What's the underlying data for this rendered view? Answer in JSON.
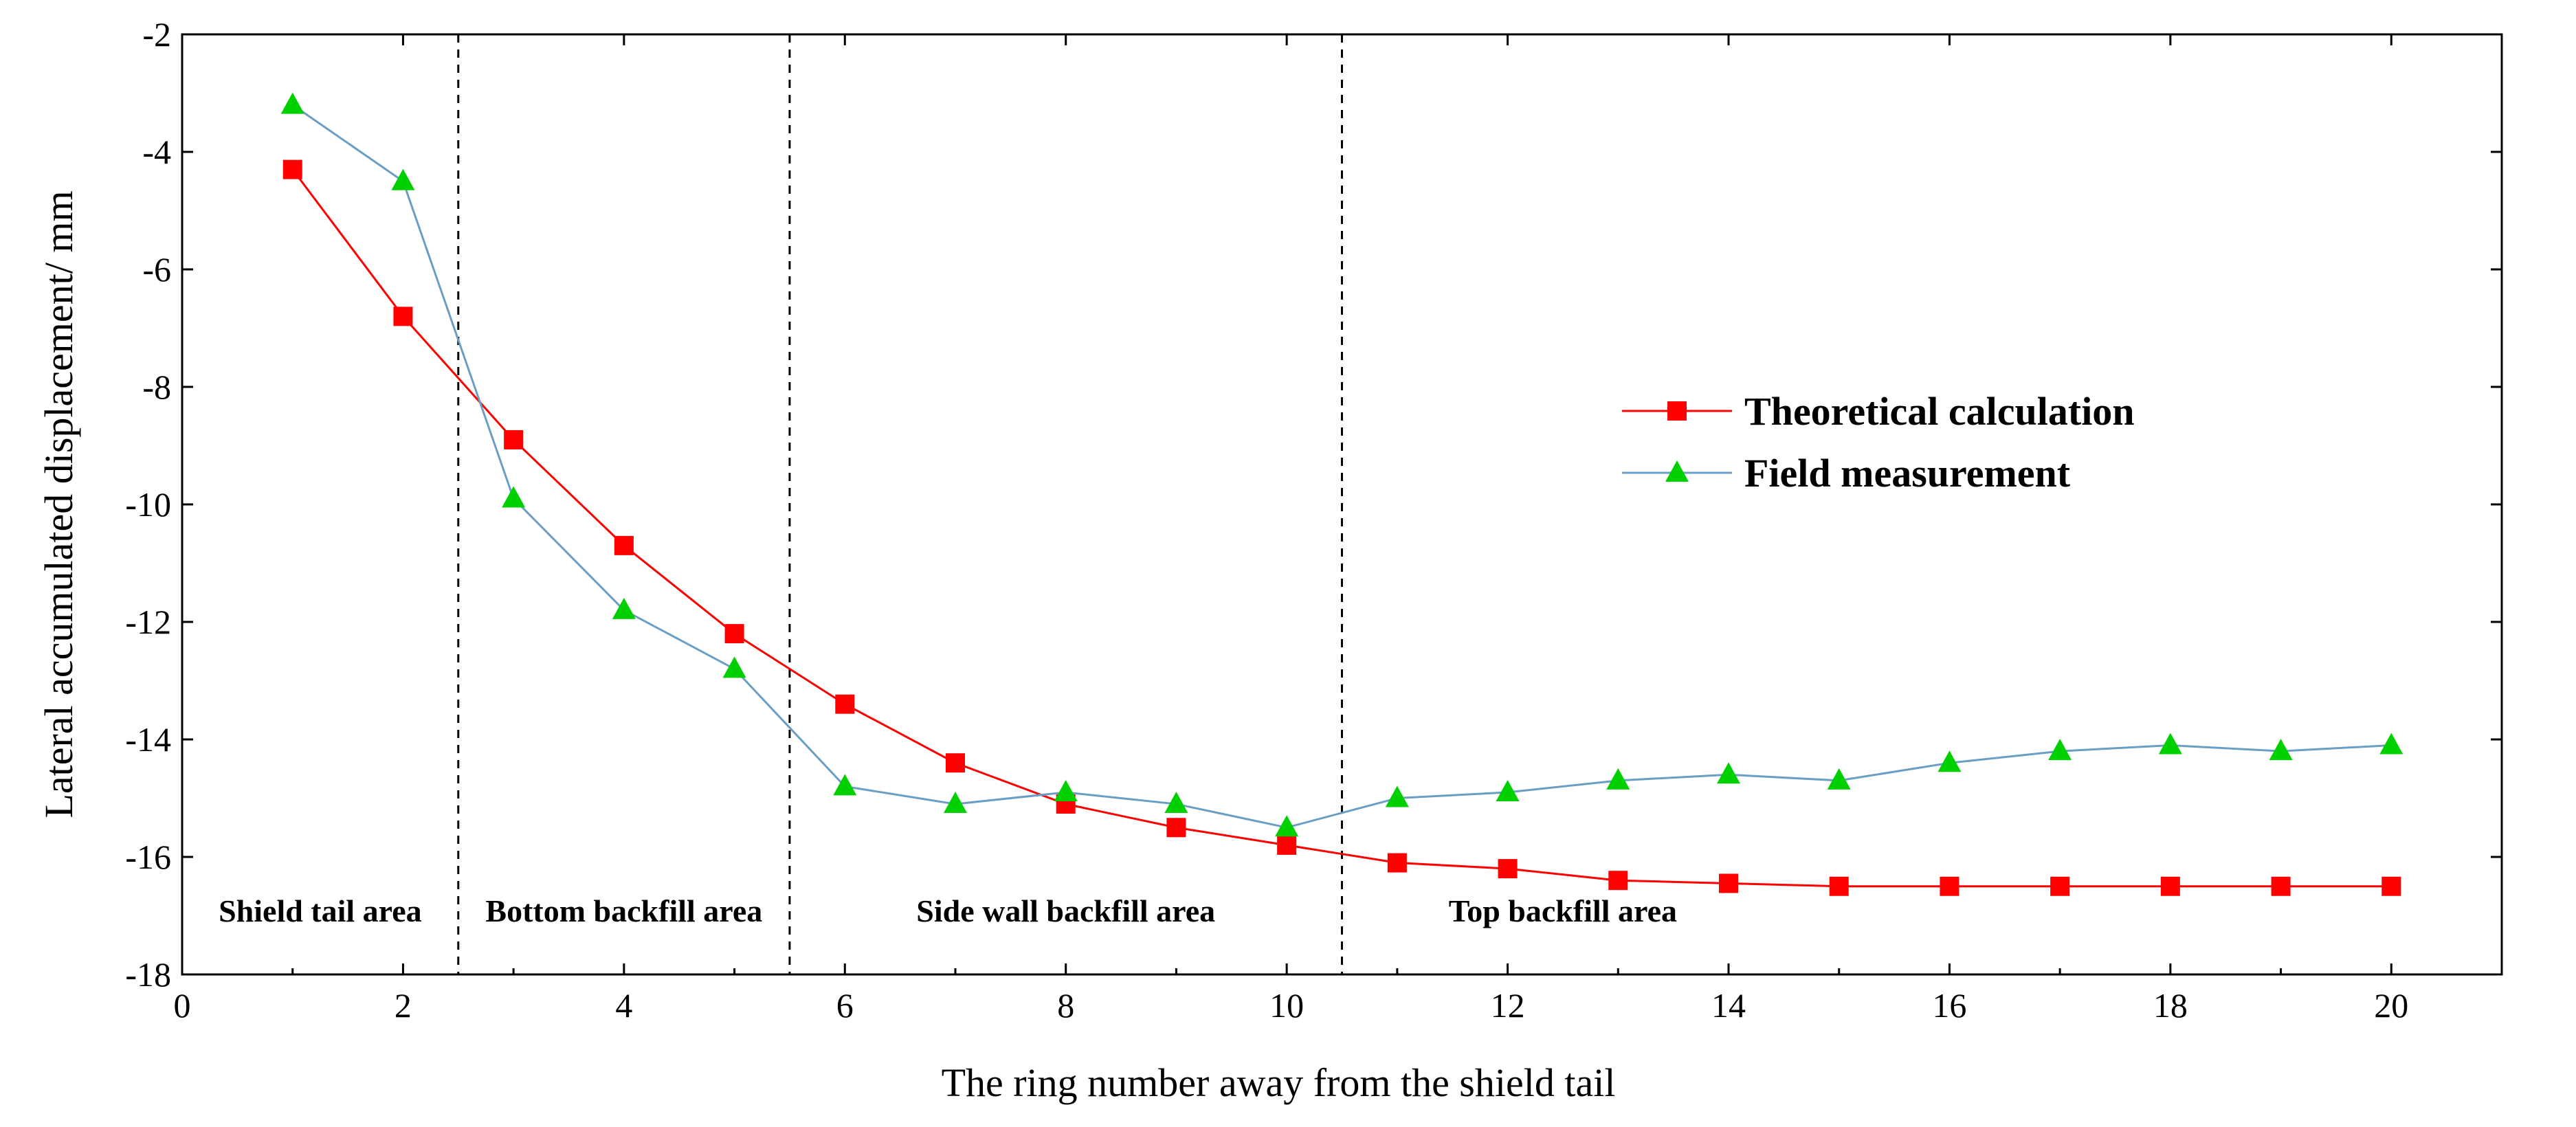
{
  "chart_data": {
    "type": "line",
    "xlabel": "The  ring number away from the shield tail",
    "ylabel": "Lateral accumulated displacement/ mm",
    "xlim": [
      0,
      21
    ],
    "ylim": [
      -18,
      -2
    ],
    "xticks": [
      0,
      2,
      4,
      6,
      8,
      10,
      12,
      14,
      16,
      18,
      20
    ],
    "yticks": [
      -2,
      -4,
      -6,
      -8,
      -10,
      -12,
      -14,
      -16,
      -18
    ],
    "grid": false,
    "legend_position": "right-middle",
    "x": [
      1,
      2,
      3,
      4,
      5,
      6,
      7,
      8,
      9,
      10,
      11,
      12,
      13,
      14,
      15,
      16,
      17,
      18,
      19,
      20
    ],
    "series": [
      {
        "name": "Theoretical calculation",
        "color": "#ff0000",
        "marker": "square",
        "values": [
          -4.3,
          -6.8,
          -8.9,
          -10.7,
          -12.2,
          -13.4,
          -14.4,
          -15.1,
          -15.5,
          -15.8,
          -16.1,
          -16.2,
          -16.4,
          -16.45,
          -16.5,
          -16.5,
          -16.5,
          -16.5,
          -16.5,
          -16.5
        ]
      },
      {
        "name": "Field measurement",
        "color": "#00d000",
        "line_color": "#6a9ec4",
        "marker": "triangle",
        "values": [
          -3.2,
          -4.5,
          -9.9,
          -11.8,
          -12.8,
          -14.8,
          -15.1,
          -14.9,
          -15.1,
          -15.5,
          -15.0,
          -14.9,
          -14.7,
          -14.6,
          -14.7,
          -14.4,
          -14.2,
          -14.1,
          -14.2,
          -14.1
        ]
      }
    ],
    "dividers": [
      2.5,
      5.5,
      10.5
    ],
    "regions": [
      {
        "label": "Shield tail area",
        "x": 1.25
      },
      {
        "label": "Bottom backfill area",
        "x": 4.0
      },
      {
        "label": "Side wall backfill area",
        "x": 8.0
      },
      {
        "label": "Top backfill area",
        "x": 12.5
      }
    ],
    "region_label_y": -17.1
  }
}
